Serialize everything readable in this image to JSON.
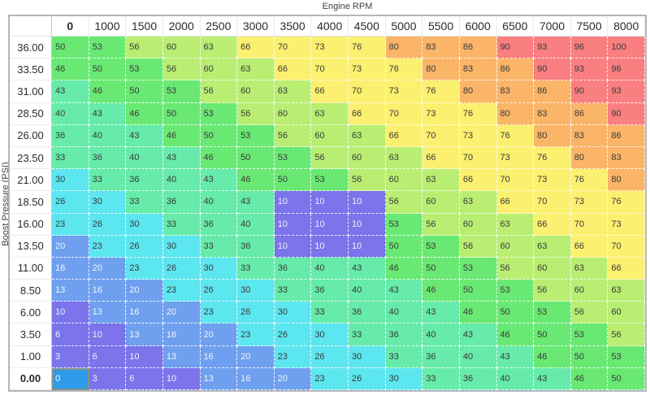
{
  "title": "Engine RPM",
  "y_axis_label": "Boost Pressure (PSI)",
  "table": {
    "column_headers": [
      "0",
      "1000",
      "1500",
      "2000",
      "2500",
      "3000",
      "3500",
      "4000",
      "4500",
      "5000",
      "5500",
      "6000",
      "6500",
      "7000",
      "7500",
      "8000"
    ],
    "row_headers": [
      "36.00",
      "33.50",
      "31.00",
      "28.50",
      "26.00",
      "23.50",
      "21.00",
      "18.50",
      "16.00",
      "13.50",
      "11.00",
      "8.50",
      "6.00",
      "3.50",
      "1.00",
      "0.00"
    ],
    "values": [
      [
        50,
        53,
        56,
        60,
        63,
        66,
        70,
        73,
        76,
        80,
        83,
        86,
        90,
        93,
        96,
        100
      ],
      [
        46,
        50,
        53,
        56,
        60,
        63,
        66,
        70,
        73,
        76,
        80,
        83,
        86,
        90,
        93,
        96
      ],
      [
        43,
        46,
        50,
        53,
        56,
        60,
        63,
        66,
        70,
        73,
        76,
        80,
        83,
        86,
        90,
        93
      ],
      [
        40,
        43,
        46,
        50,
        53,
        56,
        60,
        63,
        66,
        70,
        73,
        76,
        80,
        83,
        86,
        90
      ],
      [
        36,
        40,
        43,
        46,
        50,
        53,
        56,
        60,
        63,
        66,
        70,
        73,
        76,
        80,
        83,
        86
      ],
      [
        33,
        36,
        40,
        43,
        46,
        50,
        53,
        56,
        60,
        63,
        66,
        70,
        73,
        76,
        80,
        83
      ],
      [
        30,
        33,
        36,
        40,
        43,
        46,
        50,
        53,
        56,
        60,
        63,
        66,
        70,
        73,
        76,
        80
      ],
      [
        26,
        30,
        33,
        36,
        40,
        43,
        10,
        10,
        10,
        56,
        60,
        63,
        66,
        70,
        73,
        76
      ],
      [
        23,
        26,
        30,
        33,
        36,
        40,
        10,
        10,
        10,
        53,
        56,
        60,
        63,
        66,
        70,
        73
      ],
      [
        20,
        23,
        26,
        30,
        33,
        36,
        10,
        10,
        10,
        50,
        53,
        56,
        60,
        63,
        66,
        70
      ],
      [
        16,
        20,
        23,
        26,
        30,
        33,
        36,
        40,
        43,
        46,
        50,
        53,
        56,
        60,
        63,
        66
      ],
      [
        13,
        16,
        20,
        23,
        26,
        30,
        33,
        36,
        40,
        43,
        46,
        50,
        53,
        56,
        60,
        63
      ],
      [
        10,
        13,
        16,
        20,
        23,
        26,
        30,
        33,
        36,
        40,
        43,
        46,
        50,
        53,
        56,
        60
      ],
      [
        6,
        10,
        13,
        16,
        20,
        23,
        26,
        30,
        33,
        36,
        40,
        43,
        46,
        50,
        53,
        56
      ],
      [
        3,
        6,
        10,
        13,
        16,
        20,
        23,
        26,
        30,
        33,
        36,
        40,
        43,
        46,
        50,
        53
      ],
      [
        0,
        3,
        6,
        10,
        13,
        16,
        20,
        23,
        26,
        30,
        33,
        36,
        40,
        43,
        46,
        50
      ]
    ],
    "selected_cell": {
      "row": "0.00",
      "column": "0",
      "value": 0
    }
  },
  "colors": {
    "scale": [
      {
        "max": 0,
        "bg": "#2D9BE9",
        "text": "#FFFFFF"
      },
      {
        "max": 10,
        "bg": "#7B74EB",
        "text": "#F2F2FA"
      },
      {
        "max": 20,
        "bg": "#6FA0EF",
        "text": "#F2F5FA"
      },
      {
        "max": 30,
        "bg": "#5CE6F0",
        "text": "#3A3A3A"
      },
      {
        "max": 43,
        "bg": "#66EBAA",
        "text": "#3A3A3A"
      },
      {
        "max": 53,
        "bg": "#69E973",
        "text": "#3A3A3A"
      },
      {
        "max": 63,
        "bg": "#B9EE73",
        "text": "#3A3A3A"
      },
      {
        "max": 76,
        "bg": "#FBF06F",
        "text": "#3A3A3A"
      },
      {
        "max": 86,
        "bg": "#FBB569",
        "text": "#3A3A3A"
      },
      {
        "max": 100,
        "bg": "#FA7F80",
        "text": "#3A3A3A"
      }
    ],
    "selected_border": "#87908B"
  }
}
